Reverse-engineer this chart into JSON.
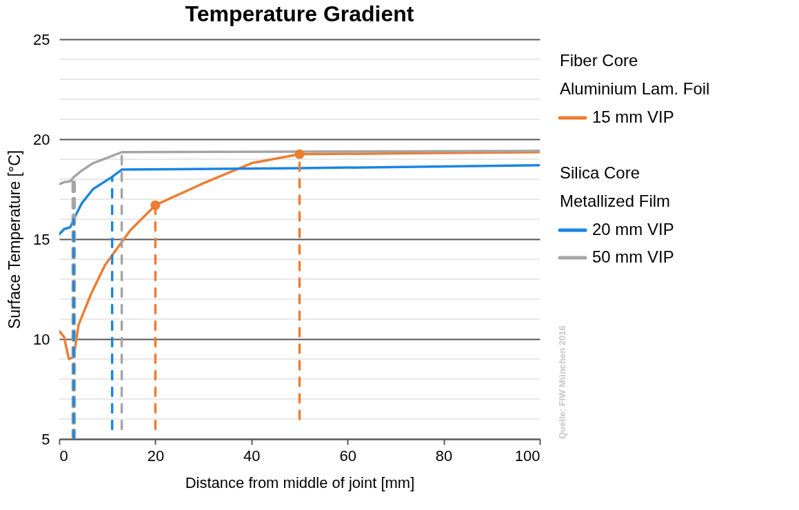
{
  "chart_data": {
    "type": "line",
    "title": "Temperature Gradient",
    "xlabel": "Distance from middle of joint [mm]",
    "ylabel": "Surface Temperature [°C]",
    "xlim": [
      0,
      100
    ],
    "xticks": [
      0,
      20,
      40,
      60,
      80,
      100
    ],
    "ylim": [
      5,
      25
    ],
    "yticks": [
      5,
      10,
      15,
      20,
      25
    ],
    "grid": "y",
    "legend": "right",
    "line_style": "solid",
    "series": [
      {
        "name": "15 mm VIP",
        "color": "#ed7d31",
        "x": [
          0,
          1,
          2,
          3,
          4,
          6.6,
          9.5,
          14.8,
          20,
          30,
          40,
          50,
          75,
          100
        ],
        "values": [
          10.4,
          10.1,
          9.0,
          9.1,
          10.7,
          12.25,
          13.7,
          15.45,
          16.7,
          17.8,
          18.8,
          19.25,
          19.3,
          19.35
        ]
      },
      {
        "name": "20 mm VIP",
        "color": "#1a85e0",
        "x": [
          0,
          1,
          2.3,
          3,
          4.7,
          7,
          10.9,
          13,
          50,
          100
        ],
        "values": [
          15.25,
          15.5,
          15.6,
          16.0,
          16.8,
          17.5,
          18.1,
          18.48,
          18.55,
          18.7
        ]
      },
      {
        "name": "50 mm VIP",
        "color": "#a5a5a5",
        "x": [
          0,
          1,
          2.3,
          3,
          4.5,
          7,
          10,
          13,
          50,
          100
        ],
        "values": [
          17.75,
          17.85,
          17.9,
          18.1,
          18.4,
          18.8,
          19.07,
          19.35,
          19.38,
          19.42
        ]
      },
      {
        "color": "#a5a5a5",
        "line_style": "dashed",
        "x": [
          3,
          3
        ],
        "values": [
          5,
          17.9
        ]
      },
      {
        "color": "#1a85e0",
        "line_style": "dashed",
        "x": [
          3,
          3
        ],
        "values": [
          5,
          16.0
        ]
      },
      {
        "color": "#1a85e0",
        "line_style": "dashed",
        "x": [
          11,
          11
        ],
        "values": [
          5.5,
          18.1
        ]
      },
      {
        "color": "#a5a5a5",
        "line_style": "dashed",
        "x": [
          13,
          13
        ],
        "values": [
          5.5,
          19.35
        ]
      },
      {
        "color": "#ed7d31",
        "line_style": "dashed",
        "x": [
          20,
          20
        ],
        "values": [
          5.5,
          16.7
        ]
      },
      {
        "color": "#ed7d31",
        "line_style": "dashed",
        "x": [
          50,
          50
        ],
        "values": [
          6,
          19.25
        ]
      },
      {
        "type": "scatter",
        "marker": "circle",
        "color": "#ed7d31",
        "x": [
          20,
          50
        ],
        "values": [
          16.7,
          19.25
        ]
      }
    ],
    "annotations": [
      "Fiber Core",
      "Aluminium Lam. Foil",
      "Silica Core",
      "Metallized Film",
      "Quelle: FIW München 2016"
    ]
  }
}
